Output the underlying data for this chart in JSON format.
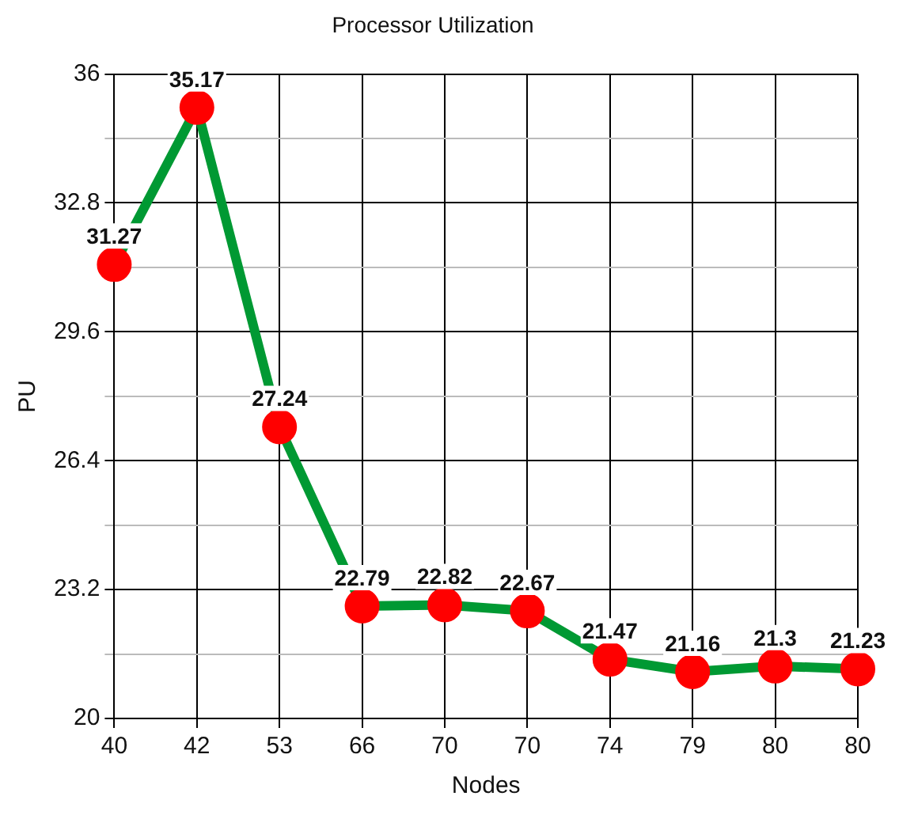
{
  "chart_data": {
    "type": "line",
    "title": "Processor Utilization",
    "xlabel": "Nodes",
    "ylabel": "PU",
    "categories": [
      "40",
      "42",
      "53",
      "66",
      "70",
      "70",
      "74",
      "79",
      "80",
      "80"
    ],
    "series": [
      {
        "color": "#009933",
        "colors": [
          "#ff0000",
          "#ff0000",
          "#ff0000",
          "#ff0000",
          "#ff0000",
          "#ff0000",
          "#ff0000",
          "#ff0000",
          "#ff0000",
          "#ff0000"
        ],
        "values": [
          31.27,
          35.17,
          27.24,
          22.79,
          22.82,
          22.67,
          21.47,
          21.16,
          21.3,
          21.23
        ]
      }
    ],
    "ylim": [
      20,
      36
    ],
    "yticks": [
      20,
      {
        "value": 21.6,
        "label": null
      },
      23.2,
      {
        "value": 24.8,
        "label": null
      },
      26.4,
      {
        "value": 28,
        "label": null
      },
      29.6,
      {
        "value": 31.2,
        "label": null
      },
      32.8,
      {
        "value": 34.4,
        "label": null
      },
      36
    ],
    "grid": true,
    "legend": false,
    "marker": "circle",
    "line_style": "solid",
    "data_labels": true
  }
}
